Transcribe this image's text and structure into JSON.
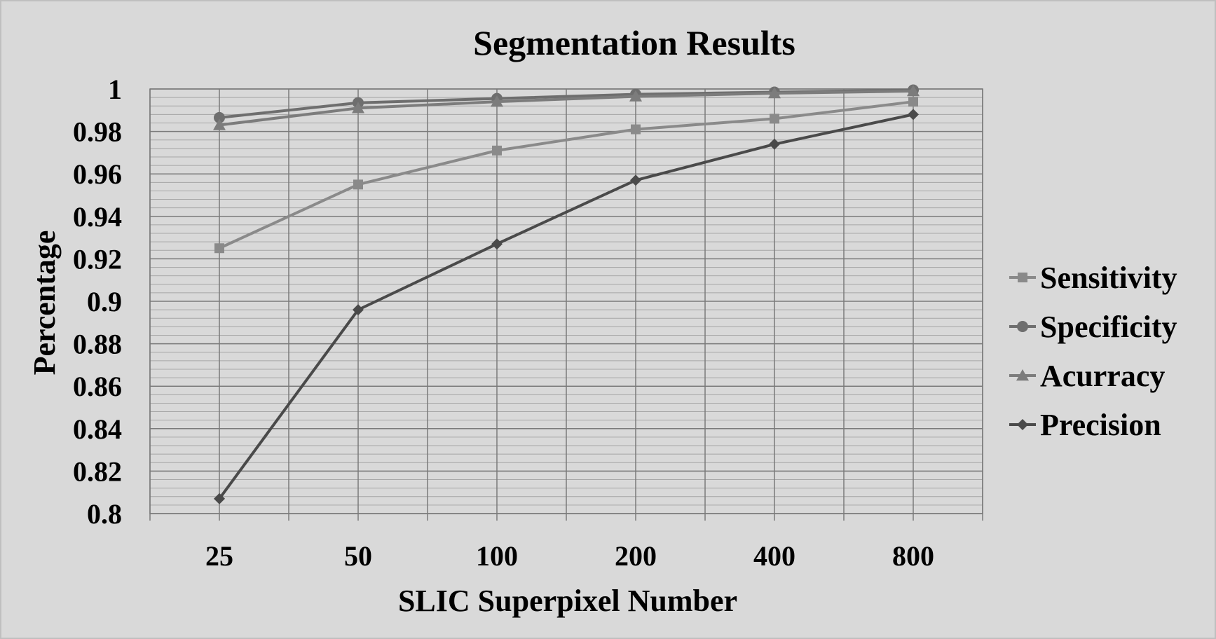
{
  "chart_data": {
    "type": "line",
    "title": "Segmentation Results",
    "xlabel": "SLIC Superpixel Number",
    "ylabel": "Percentage",
    "categories": [
      "25",
      "50",
      "100",
      "200",
      "400",
      "800"
    ],
    "ylim": [
      0.8,
      1
    ],
    "ytick_labels": [
      "0.8",
      "0.82",
      "0.84",
      "0.86",
      "0.88",
      "0.9",
      "0.92",
      "0.94",
      "0.96",
      "0.98",
      "1"
    ],
    "grid": true,
    "legend": "right",
    "series": [
      {
        "name": "Sensitivity",
        "color": "#8a8a8a",
        "marker": "square",
        "values": [
          0.925,
          0.955,
          0.971,
          0.981,
          0.986,
          0.994
        ]
      },
      {
        "name": "Specificity",
        "color": "#6e6e6e",
        "marker": "circle",
        "values": [
          0.9865,
          0.9935,
          0.9955,
          0.9975,
          0.9985,
          0.9995
        ]
      },
      {
        "name": "Acurracy",
        "color": "#7c7c7c",
        "marker": "triangle",
        "values": [
          0.983,
          0.991,
          0.994,
          0.9965,
          0.998,
          0.999
        ]
      },
      {
        "name": "Precision",
        "color": "#4a4a4a",
        "marker": "diamond",
        "values": [
          0.807,
          0.896,
          0.927,
          0.957,
          0.974,
          0.988
        ]
      }
    ]
  }
}
